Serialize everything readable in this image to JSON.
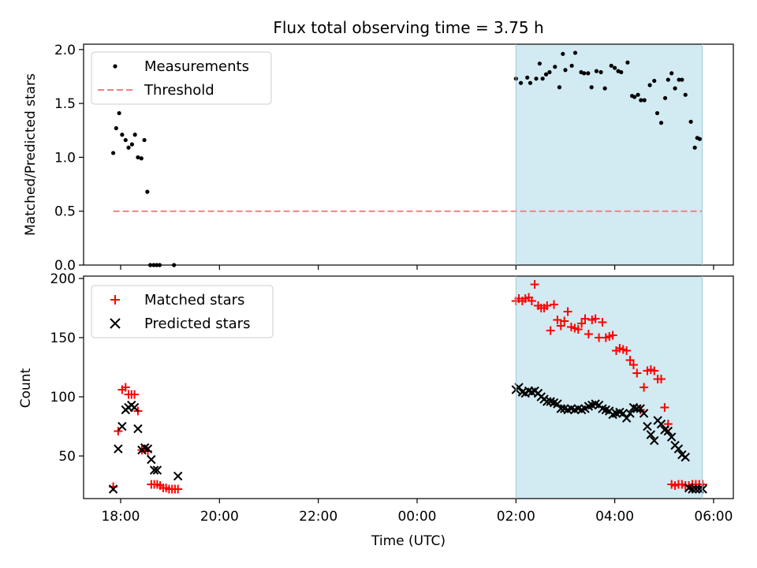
{
  "chart_data": [
    {
      "type": "scatter",
      "title": "Flux total observing time = 3.75 h",
      "xlabel": "",
      "ylabel": "Matched/Predicted stars",
      "xlim": [
        -0.75,
        12.4
      ],
      "ylim": [
        0.0,
        2.05
      ],
      "yticks": [
        0.0,
        0.5,
        1.0,
        1.5,
        2.0
      ],
      "ytick_labels": [
        "0.0",
        "0.5",
        "1.0",
        "1.5",
        "2.0"
      ],
      "shaded_span": {
        "x_start": 8.0,
        "x_end": 11.77,
        "color": "#add8e6"
      },
      "legend_position": "top-left",
      "series": [
        {
          "name": "Measurements",
          "marker": "dot",
          "color": "#000000",
          "x": [
            -0.15,
            -0.09,
            -0.03,
            0.03,
            0.1,
            0.16,
            0.23,
            0.29,
            0.35,
            0.42,
            0.48,
            0.54,
            0.6,
            0.67,
            0.73,
            0.79,
            1.08,
            8.0,
            8.1,
            8.23,
            8.29,
            8.41,
            8.48,
            8.54,
            8.61,
            8.68,
            8.79,
            8.88,
            8.95,
            9.0,
            9.13,
            9.2,
            9.32,
            9.38,
            9.46,
            9.53,
            9.63,
            9.72,
            9.8,
            9.93,
            10.0,
            10.07,
            10.13,
            10.26,
            10.35,
            10.4,
            10.47,
            10.53,
            10.6,
            10.71,
            10.8,
            10.86,
            10.94,
            11.02,
            11.08,
            11.15,
            11.22,
            11.3,
            11.36,
            11.43,
            11.54,
            11.62,
            11.67,
            11.72
          ],
          "y": [
            1.04,
            1.27,
            1.41,
            1.21,
            1.16,
            1.09,
            1.12,
            1.21,
            1.0,
            0.99,
            1.16,
            0.68,
            0.0,
            0.0,
            0.0,
            0.0,
            0.0,
            1.73,
            1.69,
            1.74,
            1.69,
            1.73,
            1.87,
            1.73,
            1.77,
            1.79,
            1.84,
            1.65,
            1.96,
            1.81,
            1.85,
            1.97,
            1.79,
            1.78,
            1.78,
            1.65,
            1.8,
            1.79,
            1.64,
            1.85,
            1.83,
            1.8,
            1.79,
            1.88,
            1.57,
            1.56,
            1.58,
            1.53,
            1.53,
            1.67,
            1.71,
            1.41,
            1.32,
            1.55,
            1.72,
            1.78,
            1.64,
            1.72,
            1.72,
            1.58,
            1.33,
            1.09,
            1.18,
            1.17
          ]
        },
        {
          "name": "Threshold",
          "marker": "dashed-line",
          "color": "#f08080",
          "x": [
            -0.15,
            11.77
          ],
          "y": [
            0.5,
            0.5
          ]
        }
      ]
    },
    {
      "type": "scatter",
      "title": "",
      "xlabel": "Time (UTC)",
      "ylabel": "Count",
      "xlim": [
        -0.75,
        12.4
      ],
      "ylim": [
        14,
        202
      ],
      "yticks": [
        50,
        100,
        150,
        200
      ],
      "ytick_labels": [
        "50",
        "100",
        "150",
        "200"
      ],
      "xticks": [
        0,
        2,
        4,
        6,
        8,
        10,
        12
      ],
      "xtick_labels": [
        "18:00",
        "20:00",
        "22:00",
        "00:00",
        "02:00",
        "04:00",
        "06:00"
      ],
      "shaded_span": {
        "x_start": 8.0,
        "x_end": 11.77,
        "color": "#add8e6"
      },
      "legend_position": "top-left",
      "series": [
        {
          "name": "Matched stars",
          "marker": "plus",
          "color": "#ff0000",
          "x": [
            -0.15,
            -0.05,
            0.03,
            0.1,
            0.16,
            0.22,
            0.28,
            0.35,
            0.43,
            0.49,
            0.55,
            0.62,
            0.68,
            0.74,
            0.8,
            0.86,
            0.92,
            0.98,
            1.04,
            1.1,
            1.16,
            8.0,
            8.06,
            8.13,
            8.19,
            8.26,
            8.32,
            8.38,
            8.45,
            8.51,
            8.57,
            8.63,
            8.7,
            8.77,
            8.84,
            8.91,
            8.98,
            9.05,
            9.12,
            9.19,
            9.26,
            9.33,
            9.4,
            9.47,
            9.54,
            9.61,
            9.68,
            9.75,
            9.82,
            9.89,
            9.96,
            10.03,
            10.1,
            10.17,
            10.24,
            10.31,
            10.38,
            10.45,
            10.52,
            10.59,
            10.66,
            10.73,
            10.8,
            10.87,
            10.94,
            11.01,
            11.08,
            11.15,
            11.22,
            11.29,
            11.36,
            11.43,
            11.5,
            11.57,
            11.64,
            11.71,
            11.78
          ],
          "y": [
            24,
            71,
            106,
            108,
            102,
            102,
            102,
            88,
            55,
            56,
            54,
            26,
            26,
            26,
            25,
            23,
            23,
            22,
            22,
            22,
            22,
            181,
            183,
            181,
            183,
            184,
            181,
            195,
            177,
            175,
            175,
            177,
            156,
            178,
            165,
            160,
            164,
            172,
            159,
            158,
            157,
            162,
            166,
            153,
            165,
            166,
            150,
            163,
            150,
            151,
            152,
            139,
            141,
            140,
            139,
            131,
            127,
            120,
            89,
            108,
            122,
            123,
            122,
            115,
            115,
            91,
            77,
            26,
            25,
            26,
            26,
            25,
            25,
            26,
            26,
            26,
            26
          ],
          "visible_count_note": ""
        },
        {
          "name": "Predicted stars",
          "marker": "x",
          "color": "#000000",
          "x": [
            -0.15,
            -0.05,
            0.03,
            0.1,
            0.16,
            0.22,
            0.28,
            0.35,
            0.43,
            0.49,
            0.55,
            0.62,
            0.68,
            0.74,
            1.16,
            8.0,
            8.06,
            8.13,
            8.19,
            8.26,
            8.32,
            8.38,
            8.45,
            8.51,
            8.57,
            8.63,
            8.7,
            8.77,
            8.84,
            8.91,
            8.98,
            9.05,
            9.12,
            9.19,
            9.26,
            9.33,
            9.4,
            9.47,
            9.54,
            9.61,
            9.68,
            9.75,
            9.82,
            9.89,
            9.96,
            10.03,
            10.1,
            10.17,
            10.24,
            10.31,
            10.38,
            10.45,
            10.52,
            10.59,
            10.66,
            10.73,
            10.8,
            10.87,
            10.94,
            11.01,
            11.08,
            11.15,
            11.22,
            11.29,
            11.36,
            11.43,
            11.5,
            11.57,
            11.64,
            11.71,
            11.78
          ],
          "y": [
            22,
            56,
            75,
            89,
            91,
            93,
            91,
            73,
            55,
            57,
            56,
            47,
            38,
            38,
            33,
            106,
            108,
            104,
            103,
            105,
            104,
            105,
            103,
            100,
            98,
            96,
            96,
            95,
            94,
            90,
            90,
            89,
            90,
            89,
            90,
            89,
            90,
            92,
            93,
            94,
            93,
            90,
            89,
            88,
            85,
            86,
            87,
            86,
            82,
            86,
            91,
            90,
            90,
            86,
            75,
            68,
            63,
            80,
            77,
            72,
            71,
            66,
            59,
            56,
            51,
            49,
            23,
            22,
            22,
            22,
            22
          ],
          "visible_count_note": ""
        }
      ]
    }
  ]
}
